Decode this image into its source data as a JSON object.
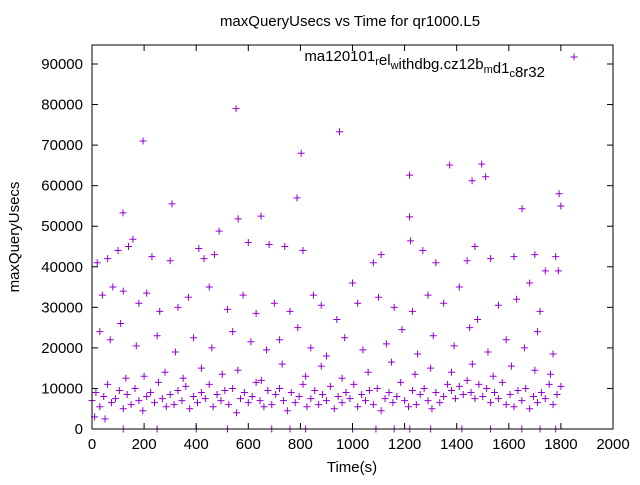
{
  "chart_data": {
    "type": "scatter",
    "title": "maxQueryUsecs vs Time for qr1000.L5",
    "xlabel": "Time(s)",
    "ylabel": "maxQueryUsecs",
    "xlim": [
      0,
      2000
    ],
    "ylim": [
      0,
      95000
    ],
    "xticks": [
      0,
      200,
      400,
      600,
      800,
      1000,
      1200,
      1400,
      1600,
      1800,
      2000
    ],
    "yticks": [
      0,
      10000,
      20000,
      30000,
      40000,
      50000,
      60000,
      70000,
      80000,
      90000
    ],
    "grid": false,
    "legend_position": "top-right",
    "series": [
      {
        "name": "ma120101_rel_withdbg.cz12b_md1_c8r32",
        "legend_parts": [
          {
            "t": "ma120101",
            "sub": false
          },
          {
            "t": "r",
            "sub": true
          },
          {
            "t": "el",
            "sub": false
          },
          {
            "t": "w",
            "sub": true
          },
          {
            "t": "ithdbg.cz12b",
            "sub": false
          },
          {
            "t": "m",
            "sub": true
          },
          {
            "t": "d1",
            "sub": false
          },
          {
            "t": "c",
            "sub": true
          },
          {
            "t": "8r32",
            "sub": false
          }
        ],
        "color": "#9400d3",
        "marker": "plus",
        "points": [
          [
            196,
            71000
          ],
          [
            553,
            79000
          ],
          [
            950,
            73300
          ],
          [
            803,
            68000
          ],
          [
            1219,
            62600
          ],
          [
            1373,
            65100
          ],
          [
            1496,
            65300
          ],
          [
            1511,
            62200
          ],
          [
            1459,
            61200
          ],
          [
            1793,
            58000
          ],
          [
            1800,
            55000
          ],
          [
            787,
            57000
          ],
          [
            307,
            55500
          ],
          [
            119,
            53300
          ],
          [
            1219,
            52300
          ],
          [
            561,
            51800
          ],
          [
            649,
            52500
          ],
          [
            1651,
            54300
          ],
          [
            488,
            48800
          ],
          [
            157,
            46800
          ],
          [
            1223,
            46400
          ],
          [
            20,
            41000
          ],
          [
            60,
            42000
          ],
          [
            100,
            44000
          ],
          [
            140,
            45000
          ],
          [
            230,
            42500
          ],
          [
            300,
            41500
          ],
          [
            410,
            44500
          ],
          [
            430,
            42000
          ],
          [
            470,
            43000
          ],
          [
            600,
            46000
          ],
          [
            680,
            45500
          ],
          [
            740,
            45000
          ],
          [
            810,
            44000
          ],
          [
            1000,
            36000
          ],
          [
            1080,
            41000
          ],
          [
            1110,
            43000
          ],
          [
            1270,
            44000
          ],
          [
            1320,
            41000
          ],
          [
            1440,
            41500
          ],
          [
            1470,
            45000
          ],
          [
            1530,
            42000
          ],
          [
            1620,
            42500
          ],
          [
            1700,
            43000
          ],
          [
            1740,
            39000
          ],
          [
            1780,
            42500
          ],
          [
            1790,
            39000
          ],
          [
            40,
            33000
          ],
          [
            80,
            35000
          ],
          [
            120,
            34000
          ],
          [
            180,
            31000
          ],
          [
            210,
            33500
          ],
          [
            260,
            29000
          ],
          [
            330,
            30000
          ],
          [
            370,
            32500
          ],
          [
            450,
            35000
          ],
          [
            520,
            29500
          ],
          [
            580,
            33000
          ],
          [
            630,
            28500
          ],
          [
            700,
            31000
          ],
          [
            760,
            29000
          ],
          [
            850,
            33000
          ],
          [
            880,
            30500
          ],
          [
            940,
            27000
          ],
          [
            1020,
            31000
          ],
          [
            1100,
            32500
          ],
          [
            1160,
            30000
          ],
          [
            1230,
            29000
          ],
          [
            1290,
            33000
          ],
          [
            1350,
            31000
          ],
          [
            1410,
            35000
          ],
          [
            1480,
            27000
          ],
          [
            1560,
            30500
          ],
          [
            1630,
            32000
          ],
          [
            1680,
            36000
          ],
          [
            1720,
            29000
          ],
          [
            30,
            24000
          ],
          [
            70,
            22000
          ],
          [
            110,
            26000
          ],
          [
            170,
            20500
          ],
          [
            250,
            23000
          ],
          [
            320,
            19000
          ],
          [
            390,
            22500
          ],
          [
            460,
            20000
          ],
          [
            540,
            24000
          ],
          [
            610,
            21500
          ],
          [
            670,
            19500
          ],
          [
            720,
            22000
          ],
          [
            790,
            25000
          ],
          [
            840,
            20000
          ],
          [
            900,
            18000
          ],
          [
            970,
            22500
          ],
          [
            1040,
            19500
          ],
          [
            1130,
            21000
          ],
          [
            1190,
            24500
          ],
          [
            1250,
            18500
          ],
          [
            1310,
            23000
          ],
          [
            1390,
            20500
          ],
          [
            1450,
            25000
          ],
          [
            1520,
            19000
          ],
          [
            1590,
            22000
          ],
          [
            1660,
            20000
          ],
          [
            1710,
            24000
          ],
          [
            1770,
            18500
          ],
          [
            0,
            7000
          ],
          [
            15,
            9000
          ],
          [
            30,
            5500
          ],
          [
            45,
            8000
          ],
          [
            60,
            11000
          ],
          [
            75,
            6500
          ],
          [
            90,
            7500
          ],
          [
            105,
            9500
          ],
          [
            120,
            5000
          ],
          [
            135,
            8500
          ],
          [
            150,
            6000
          ],
          [
            165,
            10000
          ],
          [
            180,
            7000
          ],
          [
            195,
            4500
          ],
          [
            210,
            8000
          ],
          [
            225,
            9000
          ],
          [
            240,
            6500
          ],
          [
            255,
            11500
          ],
          [
            270,
            7500
          ],
          [
            285,
            5500
          ],
          [
            300,
            8500
          ],
          [
            315,
            6000
          ],
          [
            330,
            9500
          ],
          [
            345,
            7000
          ],
          [
            360,
            10500
          ],
          [
            375,
            5000
          ],
          [
            390,
            8000
          ],
          [
            405,
            6500
          ],
          [
            420,
            9000
          ],
          [
            435,
            7500
          ],
          [
            450,
            11000
          ],
          [
            465,
            5500
          ],
          [
            480,
            8500
          ],
          [
            495,
            7000
          ],
          [
            510,
            9500
          ],
          [
            525,
            6000
          ],
          [
            540,
            10000
          ],
          [
            555,
            4000
          ],
          [
            570,
            7500
          ],
          [
            585,
            9000
          ],
          [
            600,
            6500
          ],
          [
            615,
            8000
          ],
          [
            630,
            11500
          ],
          [
            645,
            7000
          ],
          [
            660,
            5500
          ],
          [
            675,
            9500
          ],
          [
            690,
            6000
          ],
          [
            705,
            8500
          ],
          [
            720,
            10000
          ],
          [
            735,
            7000
          ],
          [
            750,
            4500
          ],
          [
            765,
            9000
          ],
          [
            780,
            6500
          ],
          [
            795,
            8000
          ],
          [
            810,
            11000
          ],
          [
            825,
            5500
          ],
          [
            840,
            7500
          ],
          [
            855,
            9500
          ],
          [
            870,
            6000
          ],
          [
            885,
            8500
          ],
          [
            900,
            7000
          ],
          [
            915,
            10500
          ],
          [
            930,
            5000
          ],
          [
            945,
            8000
          ],
          [
            960,
            6500
          ],
          [
            975,
            9000
          ],
          [
            990,
            7500
          ],
          [
            1005,
            11000
          ],
          [
            1020,
            5500
          ],
          [
            1035,
            8500
          ],
          [
            1050,
            7000
          ],
          [
            1065,
            9500
          ],
          [
            1080,
            6000
          ],
          [
            1095,
            10000
          ],
          [
            1110,
            4500
          ],
          [
            1125,
            7500
          ],
          [
            1140,
            9000
          ],
          [
            1155,
            6500
          ],
          [
            1170,
            8000
          ],
          [
            1185,
            11500
          ],
          [
            1200,
            7000
          ],
          [
            1215,
            5500
          ],
          [
            1230,
            9500
          ],
          [
            1245,
            6000
          ],
          [
            1260,
            8500
          ],
          [
            1275,
            10000
          ],
          [
            1290,
            7000
          ],
          [
            1305,
            5000
          ],
          [
            1320,
            9000
          ],
          [
            1335,
            6500
          ],
          [
            1350,
            8000
          ],
          [
            1365,
            11000
          ],
          [
            1380,
            9500
          ],
          [
            1395,
            7500
          ],
          [
            1410,
            10500
          ],
          [
            1425,
            8500
          ],
          [
            1440,
            12000
          ],
          [
            1455,
            9000
          ],
          [
            1470,
            7500
          ],
          [
            1485,
            11000
          ],
          [
            1500,
            8000
          ],
          [
            1515,
            10000
          ],
          [
            1530,
            6500
          ],
          [
            1545,
            9000
          ],
          [
            1560,
            7500
          ],
          [
            1575,
            11500
          ],
          [
            1590,
            6000
          ],
          [
            1605,
            8500
          ],
          [
            1620,
            5500
          ],
          [
            1635,
            9500
          ],
          [
            1650,
            7000
          ],
          [
            1665,
            10000
          ],
          [
            1680,
            5000
          ],
          [
            1695,
            8000
          ],
          [
            1710,
            6500
          ],
          [
            1725,
            9000
          ],
          [
            1740,
            7500
          ],
          [
            1755,
            11000
          ],
          [
            1770,
            6000
          ],
          [
            1785,
            8500
          ],
          [
            1800,
            10500
          ],
          [
            10,
            3000
          ],
          [
            50,
            2500
          ],
          [
            130,
            12500
          ],
          [
            200,
            13000
          ],
          [
            280,
            14000
          ],
          [
            350,
            12500
          ],
          [
            420,
            15000
          ],
          [
            500,
            13500
          ],
          [
            560,
            14500
          ],
          [
            650,
            12000
          ],
          [
            730,
            16000
          ],
          [
            820,
            13000
          ],
          [
            880,
            15500
          ],
          [
            960,
            12500
          ],
          [
            1060,
            14000
          ],
          [
            1150,
            16500
          ],
          [
            1240,
            13500
          ],
          [
            1300,
            15000
          ],
          [
            1380,
            14000
          ],
          [
            1460,
            16000
          ],
          [
            1540,
            13000
          ],
          [
            1610,
            15500
          ],
          [
            1700,
            14500
          ],
          [
            1760,
            13500
          ],
          [
            120,
            0
          ],
          [
            250,
            0
          ],
          [
            400,
            0
          ],
          [
            520,
            0
          ],
          [
            690,
            0
          ],
          [
            760,
            0
          ],
          [
            820,
            0
          ],
          [
            1000,
            0
          ],
          [
            1090,
            0
          ],
          [
            1160,
            0
          ],
          [
            1220,
            0
          ],
          [
            1300,
            0
          ],
          [
            1420,
            0
          ],
          [
            1530,
            0
          ],
          [
            1650,
            0
          ],
          [
            1720,
            0
          ],
          [
            1780,
            0
          ]
        ]
      }
    ]
  }
}
